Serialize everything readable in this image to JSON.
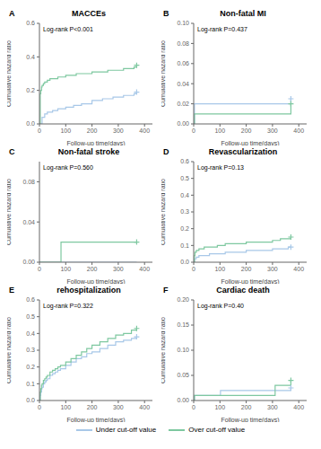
{
  "chart_data": [
    {
      "type": "step",
      "title": "MACCEs",
      "annotations": [
        "A",
        "Log-rank P<0.001"
      ],
      "xlabel": "Follow-up time(days)",
      "ylabel": "Cumulative hazard ratio",
      "xlim": [
        0,
        430
      ],
      "ylim": [
        0,
        0.6
      ],
      "xticks": [
        0,
        100,
        200,
        300,
        400
      ],
      "yticks": [
        {
          "value": 0.0,
          "label": "0.0"
        },
        0.2,
        0.4,
        0.6
      ],
      "legend": "bottom",
      "series": [
        {
          "name": "Under cut-off value",
          "color": "#a8c8e8",
          "marker": "plus",
          "x": [
            0,
            10,
            20,
            30,
            50,
            70,
            100,
            130,
            160,
            200,
            240,
            280,
            320,
            360,
            370
          ],
          "values": [
            0.0,
            0.04,
            0.06,
            0.07,
            0.08,
            0.09,
            0.1,
            0.11,
            0.12,
            0.14,
            0.15,
            0.16,
            0.17,
            0.18,
            0.19
          ]
        },
        {
          "name": "Over cut-off value",
          "color": "#7ec8a0",
          "marker": "plus",
          "x": [
            0,
            3,
            5,
            8,
            10,
            15,
            20,
            25,
            30,
            40,
            50,
            60,
            70,
            80,
            90,
            100,
            120,
            140,
            160,
            180,
            200,
            220,
            240,
            260,
            280,
            300,
            320,
            340,
            360,
            370
          ],
          "values": [
            0.0,
            0.18,
            0.2,
            0.22,
            0.23,
            0.24,
            0.25,
            0.25,
            0.26,
            0.27,
            0.27,
            0.27,
            0.28,
            0.28,
            0.28,
            0.29,
            0.29,
            0.3,
            0.3,
            0.3,
            0.31,
            0.31,
            0.31,
            0.32,
            0.32,
            0.32,
            0.33,
            0.33,
            0.34,
            0.35
          ]
        }
      ]
    },
    {
      "type": "step",
      "title": "Non-fatal MI",
      "annotations": [
        "B",
        "Log-rank P=0.437"
      ],
      "xlabel": "Follow-up time(days)",
      "ylabel": "Cumulative hazard ratio",
      "xlim": [
        0,
        430
      ],
      "ylim": [
        0,
        0.1
      ],
      "xticks": [
        0,
        100,
        200,
        300,
        400
      ],
      "yticks": [
        {
          "value": 0.0,
          "label": "0.00"
        },
        0.02,
        0.04,
        0.06,
        0.08,
        {
          "value": 0.1,
          "label": "0.10"
        }
      ],
      "legend": "bottom",
      "series": [
        {
          "name": "Under cut-off value",
          "color": "#a8c8e8",
          "marker": "plus",
          "x": [
            0,
            3,
            340,
            370
          ],
          "values": [
            0.0,
            0.02,
            0.02,
            0.025
          ]
        },
        {
          "name": "Over cut-off value",
          "color": "#7ec8a0",
          "marker": "plus",
          "x": [
            0,
            3,
            340,
            370
          ],
          "values": [
            0.0,
            0.01,
            0.01,
            0.02
          ]
        }
      ]
    },
    {
      "type": "step",
      "title": "Non-fatal stroke",
      "annotations": [
        "C",
        "Log-rank P=0.560"
      ],
      "xlabel": "Follow-up time(days)",
      "ylabel": "Cumulative hazard ratio",
      "xlim": [
        0,
        430
      ],
      "ylim": [
        0,
        0.1
      ],
      "xticks": [
        0,
        100,
        200,
        300,
        400
      ],
      "yticks": [
        {
          "value": 0.0,
          "label": "0.00"
        },
        0.04,
        0.08
      ],
      "legend": "bottom",
      "series": [
        {
          "name": "Under cut-off value",
          "color": "#a8c8e8",
          "marker": "none",
          "x": [
            0,
            370
          ],
          "values": [
            0.0,
            0.0
          ]
        },
        {
          "name": "Over cut-off value",
          "color": "#7ec8a0",
          "marker": "plus",
          "x": [
            0,
            80,
            82,
            360,
            370
          ],
          "values": [
            0.0,
            0.0,
            0.02,
            0.02,
            0.02
          ]
        }
      ]
    },
    {
      "type": "step",
      "title": "Revascularization",
      "annotations": [
        "D",
        "Log-rank P=0.13"
      ],
      "xlabel": "Follow-up time(days)",
      "ylabel": "Cumulative hazard ratio",
      "xlim": [
        0,
        430
      ],
      "ylim": [
        0,
        0.6
      ],
      "xticks": [
        0,
        100,
        200,
        300,
        400
      ],
      "yticks": [
        {
          "value": 0.0,
          "label": "0.0"
        },
        0.1,
        0.2,
        0.3,
        0.4,
        0.5,
        0.6
      ],
      "legend": "bottom",
      "series": [
        {
          "name": "Under cut-off value",
          "color": "#a8c8e8",
          "marker": "plus",
          "x": [
            0,
            3,
            5,
            10,
            20,
            40,
            60,
            90,
            120,
            160,
            200,
            250,
            300,
            330,
            360,
            370
          ],
          "values": [
            0.0,
            0.02,
            0.02,
            0.03,
            0.04,
            0.04,
            0.05,
            0.05,
            0.06,
            0.06,
            0.07,
            0.07,
            0.08,
            0.08,
            0.09,
            0.09
          ]
        },
        {
          "name": "Over cut-off value",
          "color": "#7ec8a0",
          "marker": "plus",
          "x": [
            0,
            3,
            5,
            10,
            20,
            40,
            60,
            90,
            120,
            160,
            200,
            250,
            300,
            330,
            360,
            370
          ],
          "values": [
            0.0,
            0.04,
            0.06,
            0.07,
            0.08,
            0.09,
            0.09,
            0.1,
            0.11,
            0.11,
            0.12,
            0.12,
            0.13,
            0.14,
            0.14,
            0.15
          ]
        }
      ]
    },
    {
      "type": "step",
      "title": "rehospitalization",
      "annotations": [
        "E",
        "Log-rank P=0.322"
      ],
      "xlabel": "Follow-up time(days)",
      "ylabel": "Cumulative hazard ratio",
      "xlim": [
        0,
        430
      ],
      "ylim": [
        0,
        0.6
      ],
      "xticks": [
        0,
        100,
        200,
        300,
        400
      ],
      "yticks": [
        {
          "value": 0.0,
          "label": "0.0"
        },
        0.1,
        0.2,
        0.3,
        0.4,
        0.5,
        0.6
      ],
      "legend": "bottom",
      "series": [
        {
          "name": "Under cut-off value",
          "color": "#a8c8e8",
          "marker": "plus",
          "x": [
            0,
            3,
            5,
            8,
            10,
            15,
            20,
            25,
            30,
            40,
            50,
            60,
            70,
            80,
            100,
            120,
            140,
            160,
            180,
            200,
            230,
            260,
            290,
            320,
            350,
            370
          ],
          "values": [
            0.0,
            0.03,
            0.05,
            0.07,
            0.08,
            0.1,
            0.11,
            0.12,
            0.13,
            0.15,
            0.16,
            0.17,
            0.18,
            0.19,
            0.21,
            0.23,
            0.25,
            0.26,
            0.28,
            0.29,
            0.31,
            0.33,
            0.35,
            0.36,
            0.37,
            0.38
          ]
        },
        {
          "name": "Over cut-off value",
          "color": "#7ec8a0",
          "marker": "plus",
          "x": [
            0,
            3,
            5,
            8,
            10,
            15,
            20,
            25,
            30,
            40,
            50,
            60,
            70,
            80,
            100,
            120,
            140,
            160,
            180,
            200,
            230,
            260,
            290,
            320,
            350,
            370
          ],
          "values": [
            0.0,
            0.05,
            0.07,
            0.09,
            0.1,
            0.12,
            0.13,
            0.14,
            0.15,
            0.17,
            0.18,
            0.19,
            0.2,
            0.21,
            0.23,
            0.25,
            0.27,
            0.29,
            0.31,
            0.33,
            0.35,
            0.37,
            0.39,
            0.4,
            0.42,
            0.43
          ]
        }
      ]
    },
    {
      "type": "step",
      "title": "Cardiac death",
      "annotations": [
        "F",
        "Log-rank P=0.40"
      ],
      "xlabel": "Follow-up time(days)",
      "ylabel": "Cumulative hazard ratio",
      "xlim": [
        0,
        430
      ],
      "ylim": [
        0,
        0.2
      ],
      "xticks": [
        0,
        100,
        200,
        300,
        400
      ],
      "yticks": [
        {
          "value": 0.0,
          "label": "0.00"
        },
        0.05,
        {
          "value": 0.1,
          "label": "0.10"
        },
        0.15,
        {
          "value": 0.2,
          "label": "0.20"
        }
      ],
      "legend": "bottom",
      "series": [
        {
          "name": "Under cut-off value",
          "color": "#a8c8e8",
          "marker": "plus",
          "x": [
            0,
            3,
            100,
            102,
            360,
            370
          ],
          "values": [
            0.0,
            0.01,
            0.01,
            0.02,
            0.02,
            0.025
          ]
        },
        {
          "name": "Over cut-off value",
          "color": "#7ec8a0",
          "marker": "plus",
          "x": [
            0,
            3,
            290,
            310,
            360,
            370
          ],
          "values": [
            0.0,
            0.01,
            0.01,
            0.03,
            0.03,
            0.04
          ]
        }
      ]
    }
  ]
}
